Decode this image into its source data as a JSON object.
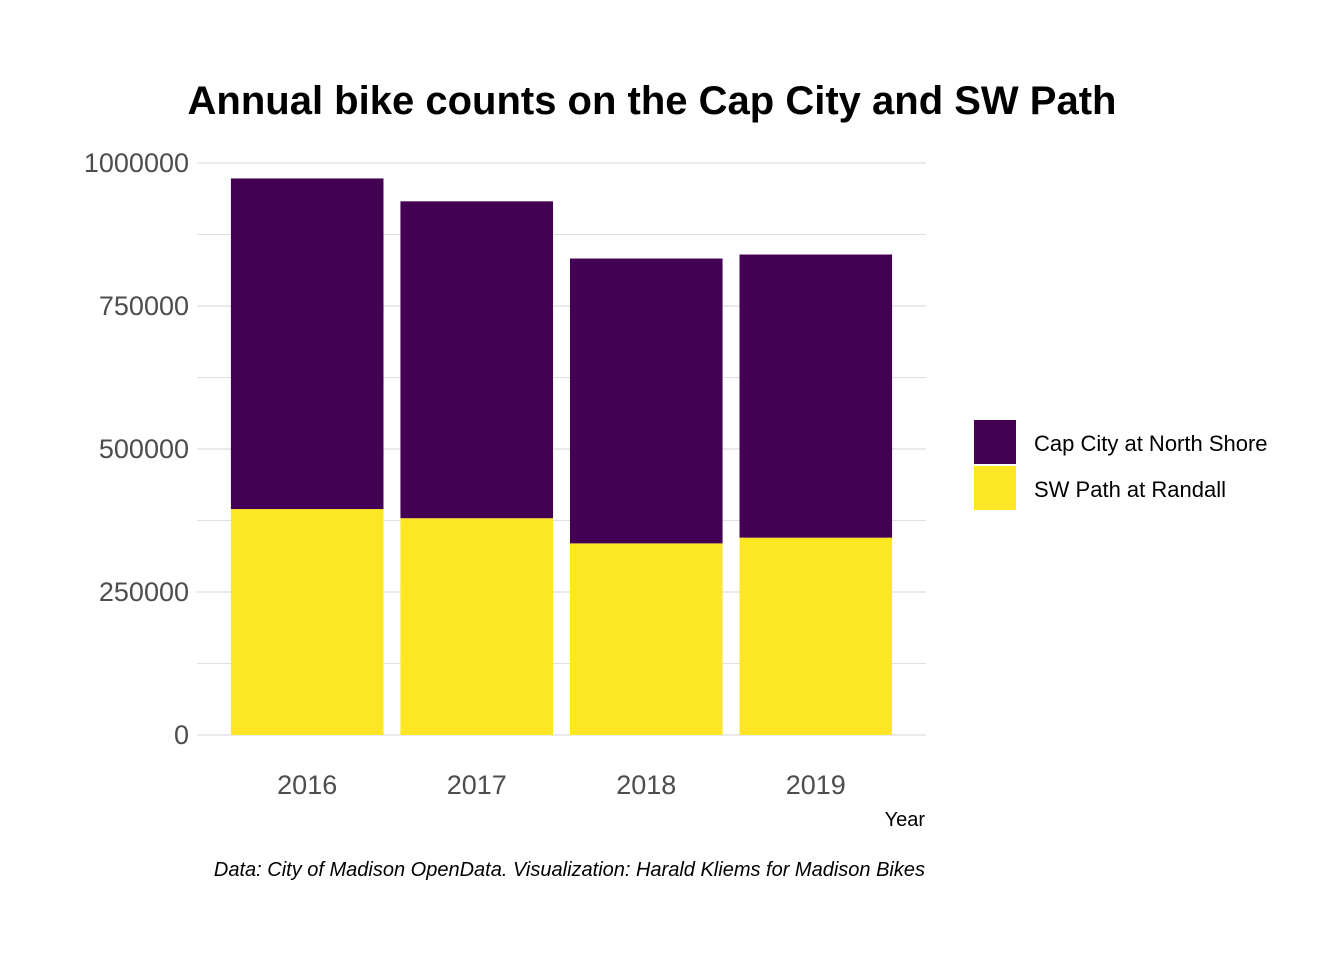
{
  "chart_data": {
    "type": "bar",
    "stacked": true,
    "title": "Annual bike counts on the Cap City and SW Path",
    "xlabel": "Year",
    "ylabel": "",
    "caption": "Data: City of Madison OpenData. Visualization: Harald Kliems for Madison Bikes",
    "categories": [
      "2016",
      "2017",
      "2018",
      "2019"
    ],
    "ylim": [
      0,
      1000000
    ],
    "yticks": [
      0,
      250000,
      500000,
      750000,
      1000000
    ],
    "ytick_labels": [
      "0",
      "250000",
      "500000",
      "750000",
      "1000000"
    ],
    "grid": true,
    "legend_position": "right",
    "series": [
      {
        "name": "SW Path at Randall",
        "color": "#FDE725",
        "values": [
          395000,
          379000,
          335000,
          345000
        ]
      },
      {
        "name": "Cap City at North Shore",
        "color": "#440154",
        "values": [
          578000,
          554000,
          498000,
          495000
        ]
      }
    ],
    "legend_order": [
      "Cap City at North Shore",
      "SW Path at Randall"
    ]
  }
}
